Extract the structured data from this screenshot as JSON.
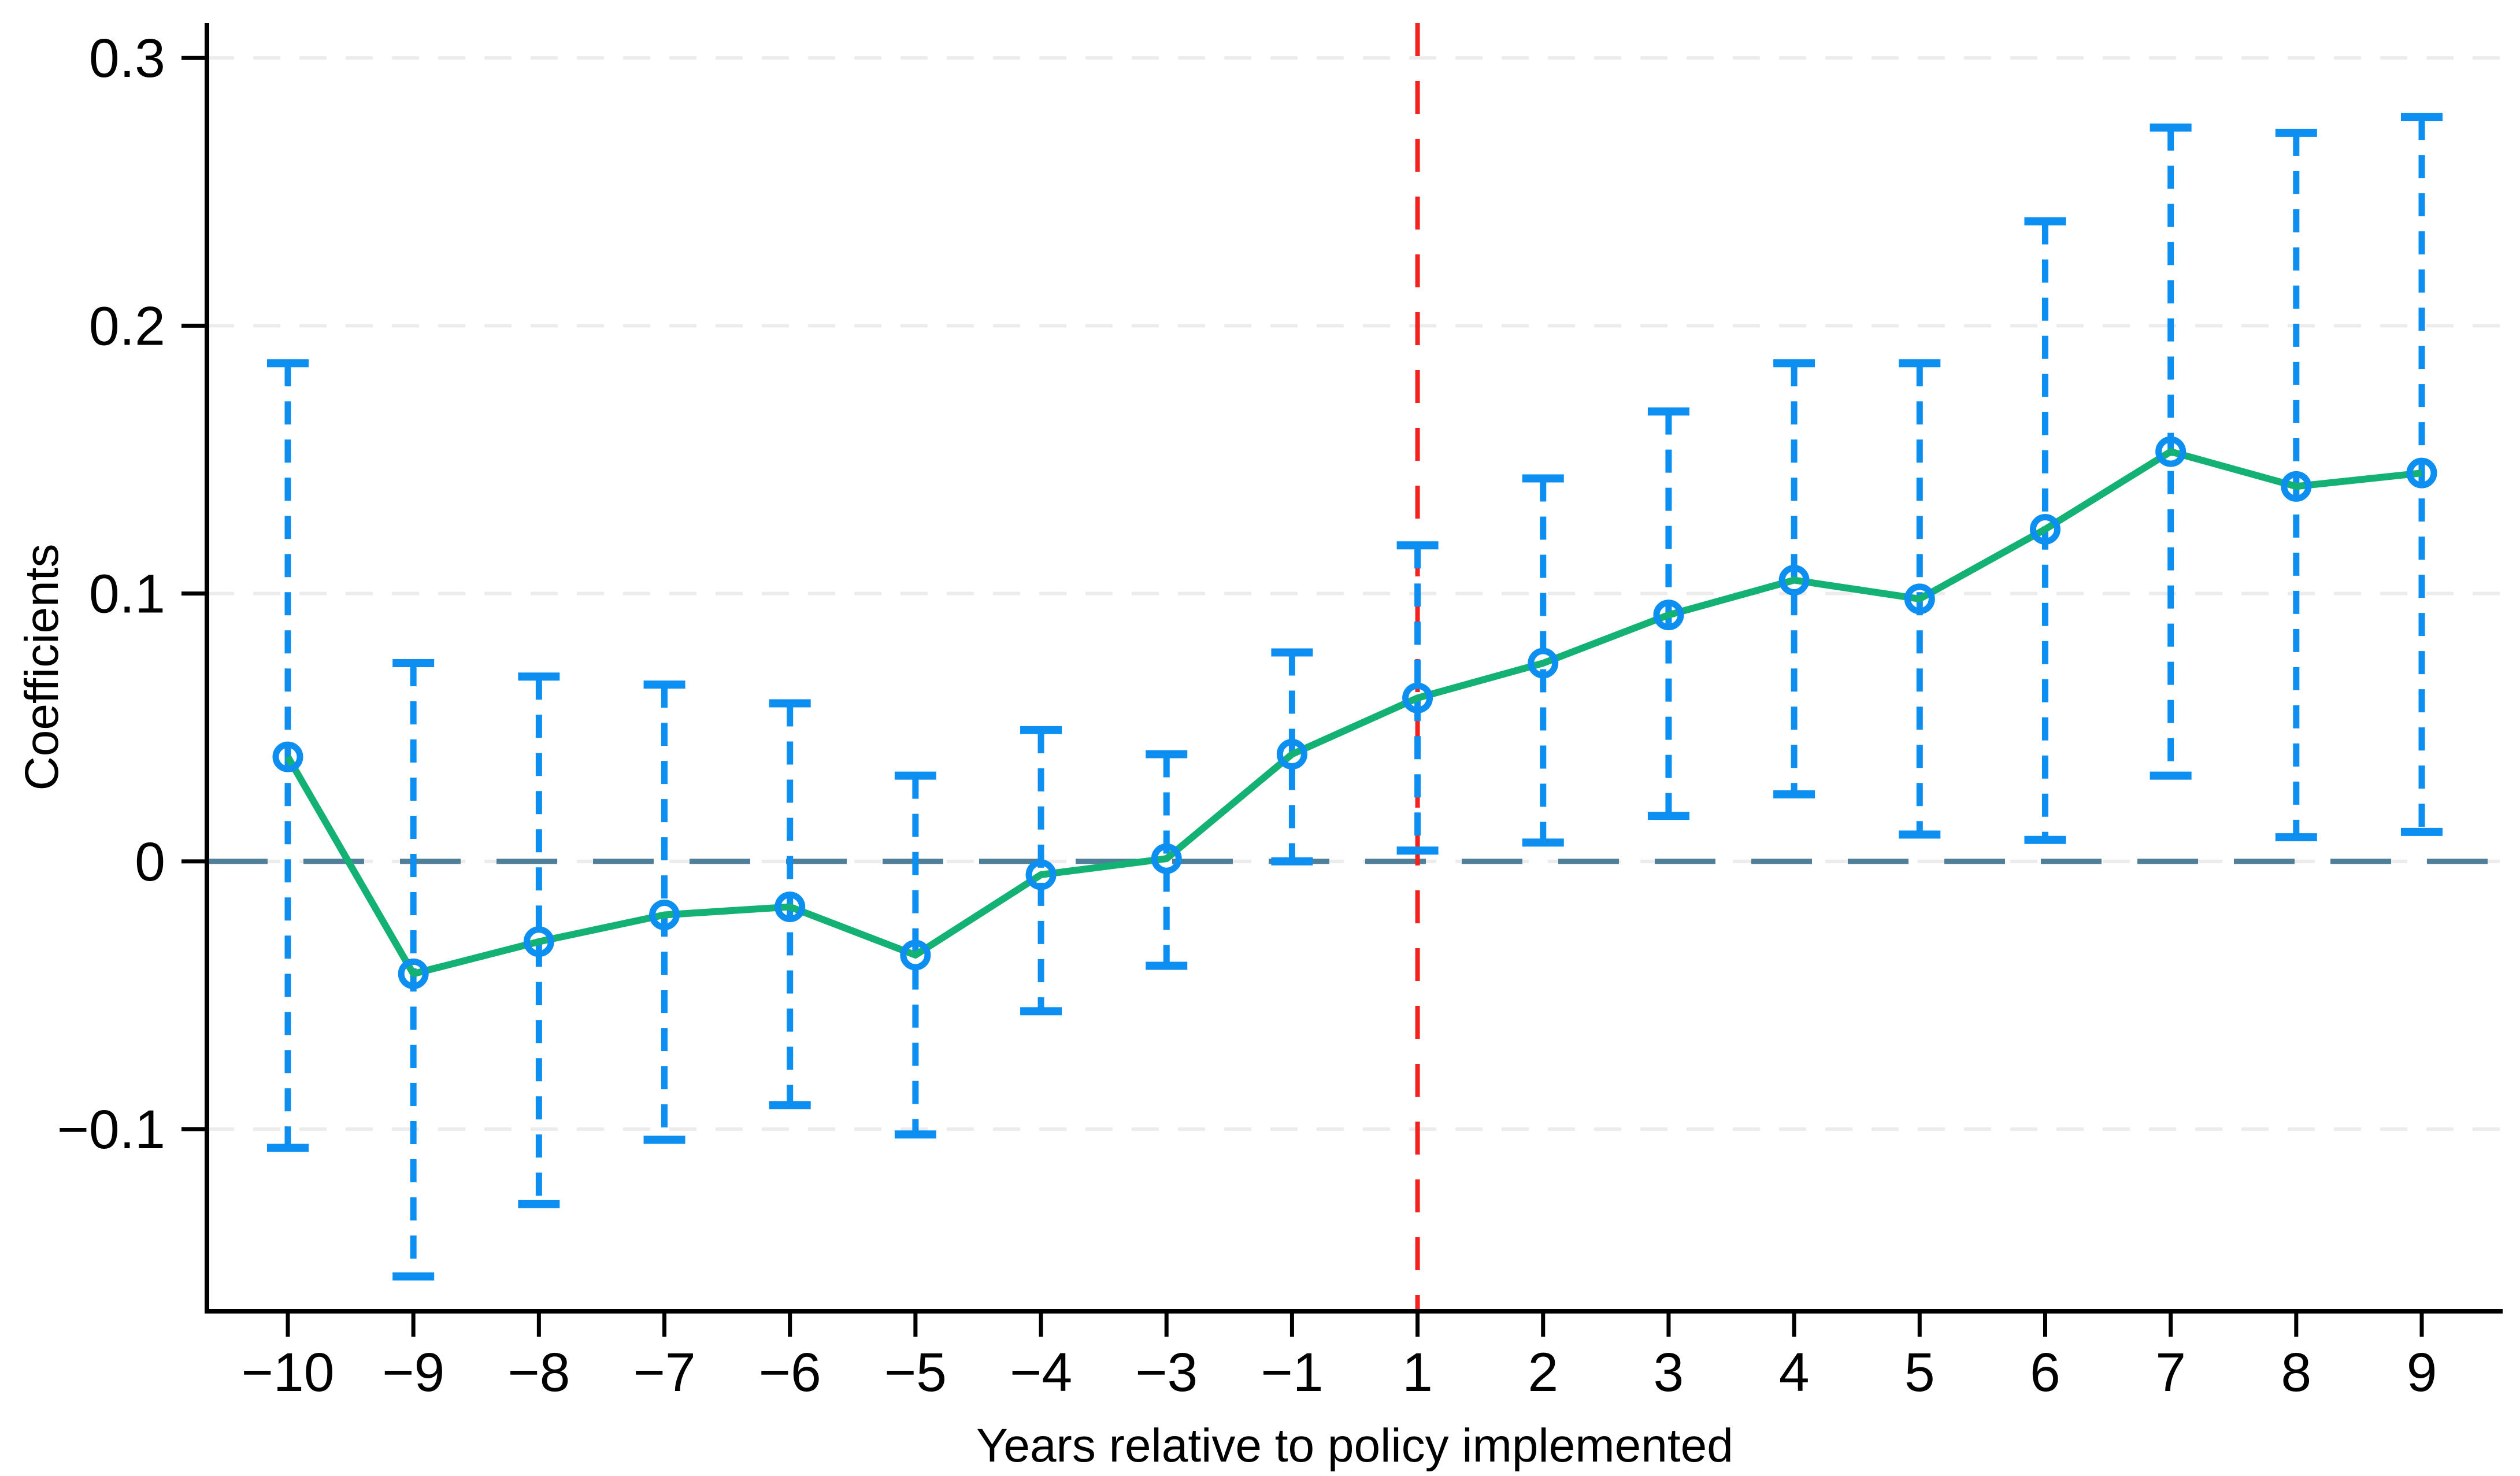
{
  "chart_data": {
    "type": "line",
    "title": "",
    "xlabel": "Years relative to policy implemented",
    "ylabel": "Coefficients",
    "x": [
      -10,
      -9,
      -8,
      -7,
      -6,
      -5,
      -4,
      -3,
      -1,
      1,
      2,
      3,
      4,
      5,
      6,
      7,
      8,
      9
    ],
    "x_tick_labels": [
      "−10",
      "−9",
      "−8",
      "−7",
      "−6",
      "−5",
      "−4",
      "−3",
      "−1",
      "1",
      "2",
      "3",
      "4",
      "5",
      "6",
      "7",
      "8",
      "9"
    ],
    "series": [
      {
        "name": "coefficient",
        "marker": "hollow-circle",
        "values": [
          0.039,
          -0.042,
          -0.03,
          -0.02,
          -0.017,
          -0.035,
          -0.005,
          0.001,
          0.04,
          0.061,
          0.074,
          0.092,
          0.105,
          0.098,
          0.124,
          0.153,
          0.14,
          0.145
        ]
      }
    ],
    "error_bars": {
      "style": "dashed-with-caps",
      "lower": [
        -0.107,
        -0.155,
        -0.128,
        -0.104,
        -0.091,
        -0.102,
        -0.056,
        -0.039,
        0.0,
        0.004,
        0.007,
        0.017,
        0.025,
        0.01,
        0.008,
        0.032,
        0.009,
        0.011
      ],
      "upper": [
        0.186,
        0.074,
        0.069,
        0.066,
        0.059,
        0.032,
        0.049,
        0.04,
        0.078,
        0.118,
        0.143,
        0.168,
        0.186,
        0.186,
        0.239,
        0.274,
        0.272,
        0.278
      ]
    },
    "reference_lines": {
      "horizontal_zero_y": 0,
      "vertical_policy_at_label": "1"
    },
    "yticks": [
      0.3,
      0.2,
      0.1,
      0,
      -0.1
    ],
    "ytick_labels": [
      "0.3",
      "0.2",
      "0.1",
      "0",
      "−0.1"
    ],
    "ylim": [
      -0.168,
      0.313
    ],
    "grid": "horizontal-dashed",
    "legend": "none",
    "colors": {
      "line": "#13b173",
      "marker": "#0d8ff2",
      "error_bar": "#0d8ff2",
      "zero_line": "#4f7f99",
      "policy_line": "#f2231e",
      "gridline": "#ececec",
      "axis": "#000000",
      "background": "#ffffff"
    }
  }
}
